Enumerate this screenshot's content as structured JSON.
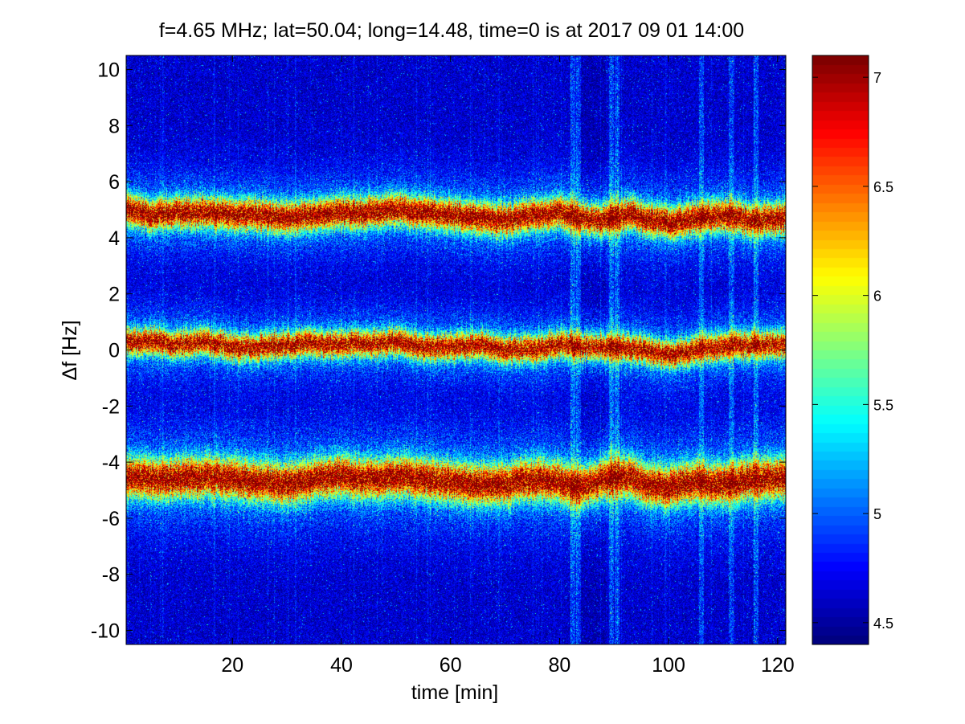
{
  "chart_data": {
    "type": "heatmap",
    "title": "f=4.65 MHz;  lat=50.04; long=14.48, time=0 is at 2017 09 01 14:00",
    "xlabel": "time [min]",
    "ylabel": "Δf [Hz]",
    "xlim": [
      0.5,
      121.5
    ],
    "ylim": [
      -10.5,
      10.5
    ],
    "x_ticks": [
      20,
      40,
      60,
      80,
      100,
      120
    ],
    "x_tick_labels": [
      "20",
      "40",
      "60",
      "80",
      "100",
      "120"
    ],
    "y_ticks": [
      10,
      8,
      6,
      4,
      2,
      0,
      -2,
      -4,
      -6,
      -8,
      -10
    ],
    "y_tick_labels": [
      "10",
      "8",
      "6",
      "4",
      "2",
      "0",
      "-2",
      "-4",
      "-6",
      "-8",
      "-10"
    ],
    "colorbar": {
      "colormap": "jet",
      "clim": [
        4.4,
        7.1
      ],
      "ticks": [
        4.5,
        5,
        5.5,
        6,
        6.5,
        7
      ],
      "tick_labels": [
        "4.5",
        "5",
        "5.5",
        "6",
        "6.5",
        "7"
      ]
    },
    "background_level": 4.6,
    "bands": [
      {
        "name": "upper",
        "center_df_by_time": [
          [
            1,
            5.0
          ],
          [
            5,
            4.8
          ],
          [
            10,
            4.9
          ],
          [
            15,
            4.9
          ],
          [
            20,
            4.8
          ],
          [
            25,
            4.8
          ],
          [
            30,
            4.7
          ],
          [
            35,
            4.8
          ],
          [
            40,
            4.9
          ],
          [
            45,
            4.9
          ],
          [
            50,
            5.0
          ],
          [
            55,
            4.9
          ],
          [
            60,
            4.8
          ],
          [
            65,
            4.7
          ],
          [
            70,
            4.6
          ],
          [
            75,
            4.8
          ],
          [
            80,
            4.9
          ],
          [
            84,
            4.7
          ],
          [
            88,
            4.6
          ],
          [
            92,
            4.8
          ],
          [
            96,
            4.7
          ],
          [
            100,
            4.5
          ],
          [
            105,
            4.7
          ],
          [
            110,
            4.8
          ],
          [
            115,
            4.6
          ],
          [
            121,
            4.7
          ]
        ],
        "peak_level": 7.1,
        "spread_hz": 0.35
      },
      {
        "name": "middle",
        "center_df_by_time": [
          [
            1,
            0.3
          ],
          [
            5,
            0.3
          ],
          [
            10,
            0.2
          ],
          [
            15,
            0.3
          ],
          [
            20,
            0.1
          ],
          [
            25,
            0.1
          ],
          [
            30,
            0.2
          ],
          [
            35,
            0.2
          ],
          [
            40,
            0.2
          ],
          [
            45,
            0.2
          ],
          [
            50,
            0.3
          ],
          [
            55,
            0.1
          ],
          [
            60,
            0.1
          ],
          [
            65,
            0.2
          ],
          [
            70,
            0.0
          ],
          [
            75,
            0.0
          ],
          [
            80,
            0.2
          ],
          [
            85,
            0.1
          ],
          [
            90,
            0.1
          ],
          [
            95,
            0.0
          ],
          [
            100,
            -0.2
          ],
          [
            105,
            0.0
          ],
          [
            110,
            0.1
          ],
          [
            115,
            0.2
          ],
          [
            121,
            0.2
          ]
        ],
        "peak_level": 7.0,
        "spread_hz": 0.3
      },
      {
        "name": "lower",
        "center_df_by_time": [
          [
            1,
            -4.5
          ],
          [
            5,
            -4.6
          ],
          [
            10,
            -4.6
          ],
          [
            15,
            -4.5
          ],
          [
            20,
            -4.6
          ],
          [
            25,
            -4.7
          ],
          [
            30,
            -4.8
          ],
          [
            35,
            -4.6
          ],
          [
            40,
            -4.5
          ],
          [
            45,
            -4.6
          ],
          [
            50,
            -4.5
          ],
          [
            55,
            -4.6
          ],
          [
            60,
            -4.7
          ],
          [
            65,
            -4.8
          ],
          [
            70,
            -4.8
          ],
          [
            75,
            -4.6
          ],
          [
            80,
            -4.7
          ],
          [
            84,
            -4.9
          ],
          [
            88,
            -4.6
          ],
          [
            92,
            -4.5
          ],
          [
            96,
            -4.8
          ],
          [
            100,
            -4.9
          ],
          [
            105,
            -4.7
          ],
          [
            110,
            -4.8
          ],
          [
            115,
            -4.6
          ],
          [
            121,
            -4.6
          ]
        ],
        "peak_level": 7.1,
        "spread_hz": 0.45
      }
    ],
    "vertical_noise_stripes_min": [
      82.5,
      83.5,
      89.5,
      90.5,
      106,
      111.5,
      116
    ],
    "quiet_stripes_min": [
      84,
      85,
      86,
      87,
      88
    ]
  }
}
